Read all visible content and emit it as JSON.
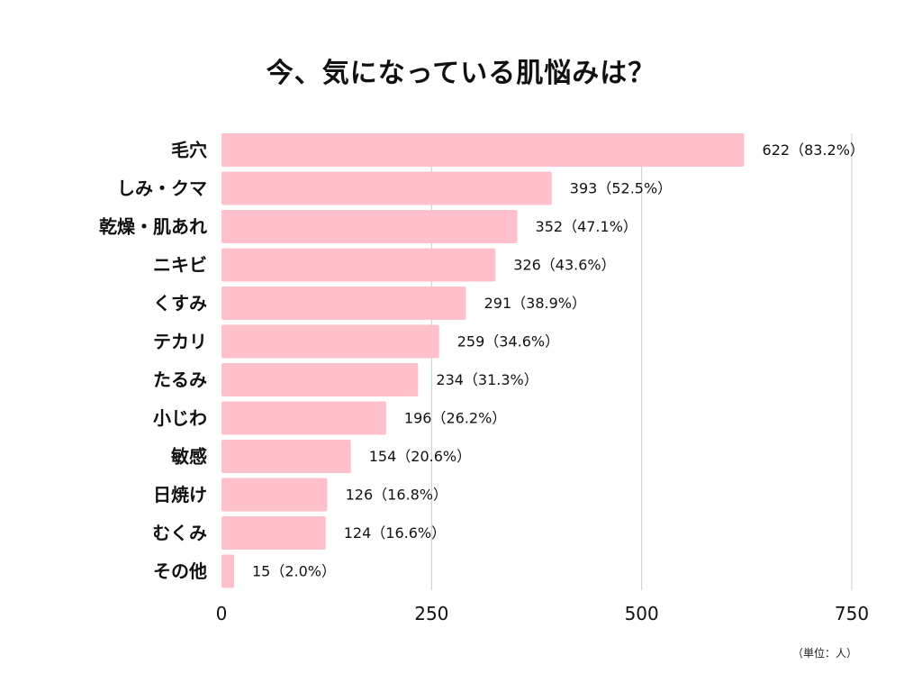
{
  "chart_data": {
    "type": "bar",
    "orientation": "horizontal",
    "title": "今、気になっている肌悩みは？",
    "unit_note": "（単位：人）",
    "categories": [
      "毛穴",
      "しみ・クマ",
      "乾燥・肌あれ",
      "ニキビ",
      "くすみ",
      "テカリ",
      "たるみ",
      "小じわ",
      "敏感",
      "日焼け",
      "むくみ",
      "その他"
    ],
    "values": [
      622,
      393,
      352,
      326,
      291,
      259,
      234,
      196,
      154,
      126,
      124,
      15
    ],
    "data_labels": [
      "622（83.2%）",
      "393（52.5%）",
      "352（47.1%）",
      "326（43.6%）",
      "291（38.9%）",
      "259（34.6%）",
      "234（31.3%）",
      "196（26.2%）",
      "154（20.6%）",
      "126（16.8%）",
      "124（16.6%）",
      "15（2.0%）"
    ],
    "xlim": [
      0,
      750
    ],
    "x_ticks": [
      0,
      250,
      500,
      750
    ],
    "grid": true,
    "legend": "none",
    "bar_color": "#ffc0cb",
    "grid_color": "#cccccc"
  }
}
